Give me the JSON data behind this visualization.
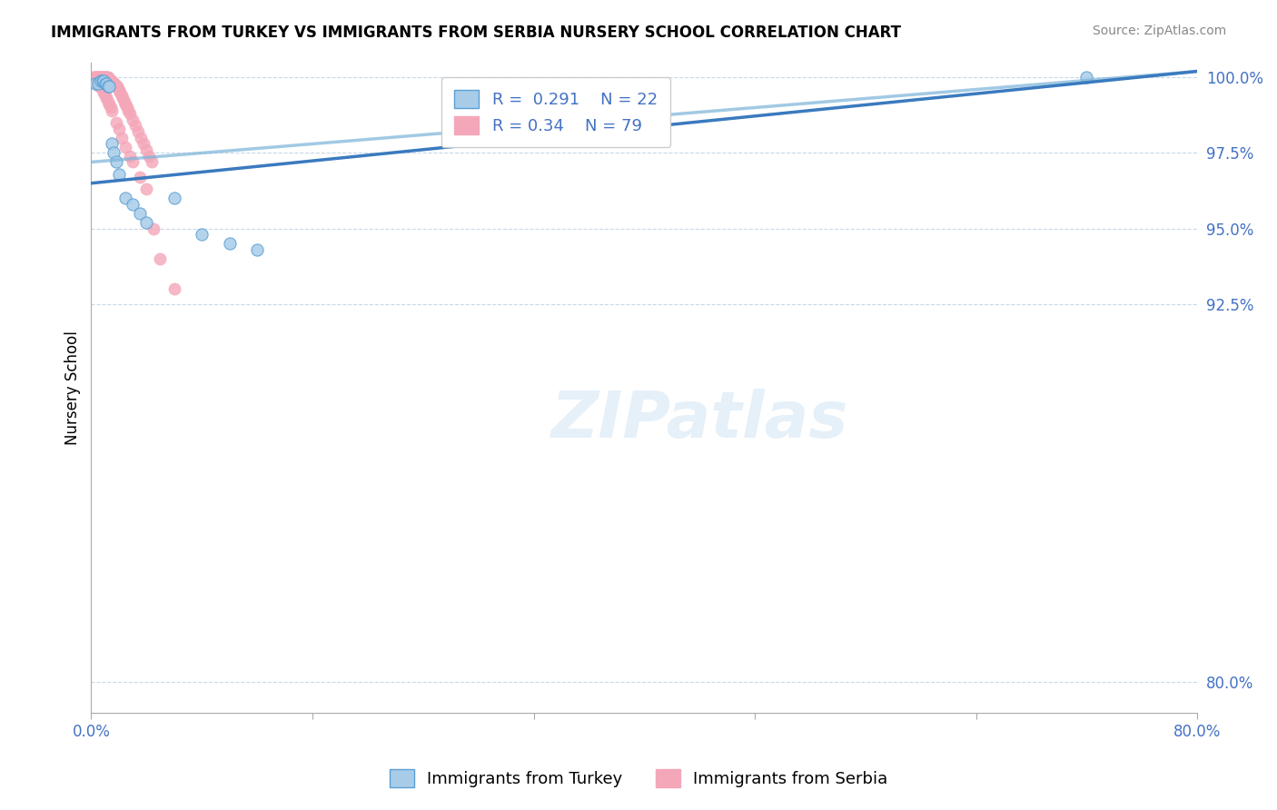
{
  "title": "IMMIGRANTS FROM TURKEY VS IMMIGRANTS FROM SERBIA NURSERY SCHOOL CORRELATION CHART",
  "source": "Source: ZipAtlas.com",
  "ylabel": "Nursery School",
  "xlim": [
    0.0,
    0.8
  ],
  "ylim": [
    0.79,
    1.005
  ],
  "xticks": [
    0.0,
    0.16,
    0.32,
    0.48,
    0.64,
    0.8
  ],
  "xticklabels": [
    "0.0%",
    "",
    "",
    "",
    "",
    "80.0%"
  ],
  "yticks": [
    0.8,
    0.925,
    0.95,
    0.975,
    1.0
  ],
  "yticklabels": [
    "80.0%",
    "92.5%",
    "95.0%",
    "97.5%",
    "100.0%"
  ],
  "turkey_R": 0.291,
  "turkey_N": 22,
  "serbia_R": 0.34,
  "serbia_N": 79,
  "turkey_color": "#a8cce8",
  "serbia_color": "#f4a7b9",
  "turkey_line_color": "#3a7abf",
  "serbia_line_color": "#3a7abf",
  "legend_label_turkey": "Immigrants from Turkey",
  "legend_label_serbia": "Immigrants from Serbia",
  "background_color": "#ffffff",
  "grid_color": "#c8d8e8",
  "watermark_text": "ZIPatlas",
  "turkey_line_x0": 0.0,
  "turkey_line_y0": 0.965,
  "turkey_line_x1": 0.8,
  "turkey_line_y1": 1.002,
  "serbia_line_x0": 0.0,
  "serbia_line_y0": 0.972,
  "serbia_line_x1": 0.8,
  "serbia_line_y1": 1.002,
  "turkey_x": [
    0.003,
    0.005,
    0.007,
    0.008,
    0.009,
    0.01,
    0.011,
    0.012,
    0.013,
    0.015,
    0.016,
    0.018,
    0.02,
    0.025,
    0.03,
    0.035,
    0.04,
    0.06,
    0.08,
    0.1,
    0.12,
    0.72
  ],
  "turkey_y": [
    0.998,
    0.998,
    0.999,
    0.999,
    0.999,
    0.998,
    0.998,
    0.997,
    0.997,
    0.978,
    0.975,
    0.972,
    0.968,
    0.96,
    0.958,
    0.955,
    0.952,
    0.96,
    0.948,
    0.945,
    0.943,
    1.0
  ],
  "serbia_x": [
    0.001,
    0.002,
    0.003,
    0.003,
    0.004,
    0.004,
    0.005,
    0.005,
    0.005,
    0.006,
    0.006,
    0.006,
    0.007,
    0.007,
    0.007,
    0.008,
    0.008,
    0.008,
    0.009,
    0.009,
    0.01,
    0.01,
    0.01,
    0.011,
    0.011,
    0.012,
    0.012,
    0.013,
    0.013,
    0.014,
    0.014,
    0.015,
    0.015,
    0.016,
    0.017,
    0.018,
    0.019,
    0.02,
    0.021,
    0.022,
    0.023,
    0.024,
    0.025,
    0.026,
    0.027,
    0.028,
    0.03,
    0.032,
    0.034,
    0.036,
    0.038,
    0.04,
    0.042,
    0.044,
    0.002,
    0.003,
    0.004,
    0.005,
    0.006,
    0.007,
    0.008,
    0.009,
    0.01,
    0.011,
    0.012,
    0.013,
    0.014,
    0.015,
    0.018,
    0.02,
    0.022,
    0.025,
    0.028,
    0.03,
    0.035,
    0.04,
    0.045,
    0.05,
    0.06
  ],
  "serbia_y": [
    1.0,
    1.0,
    1.0,
    1.0,
    1.0,
    1.0,
    1.0,
    1.0,
    1.0,
    1.0,
    1.0,
    1.0,
    1.0,
    1.0,
    1.0,
    1.0,
    1.0,
    1.0,
    1.0,
    1.0,
    1.0,
    1.0,
    1.0,
    1.0,
    1.0,
    1.0,
    1.0,
    0.999,
    0.999,
    0.999,
    0.999,
    0.999,
    0.998,
    0.998,
    0.998,
    0.997,
    0.997,
    0.996,
    0.995,
    0.994,
    0.993,
    0.992,
    0.991,
    0.99,
    0.989,
    0.988,
    0.986,
    0.984,
    0.982,
    0.98,
    0.978,
    0.976,
    0.974,
    0.972,
    0.999,
    0.999,
    0.998,
    0.998,
    0.997,
    0.997,
    0.996,
    0.995,
    0.994,
    0.993,
    0.992,
    0.991,
    0.99,
    0.989,
    0.985,
    0.983,
    0.98,
    0.977,
    0.974,
    0.972,
    0.967,
    0.963,
    0.95,
    0.94,
    0.93
  ]
}
